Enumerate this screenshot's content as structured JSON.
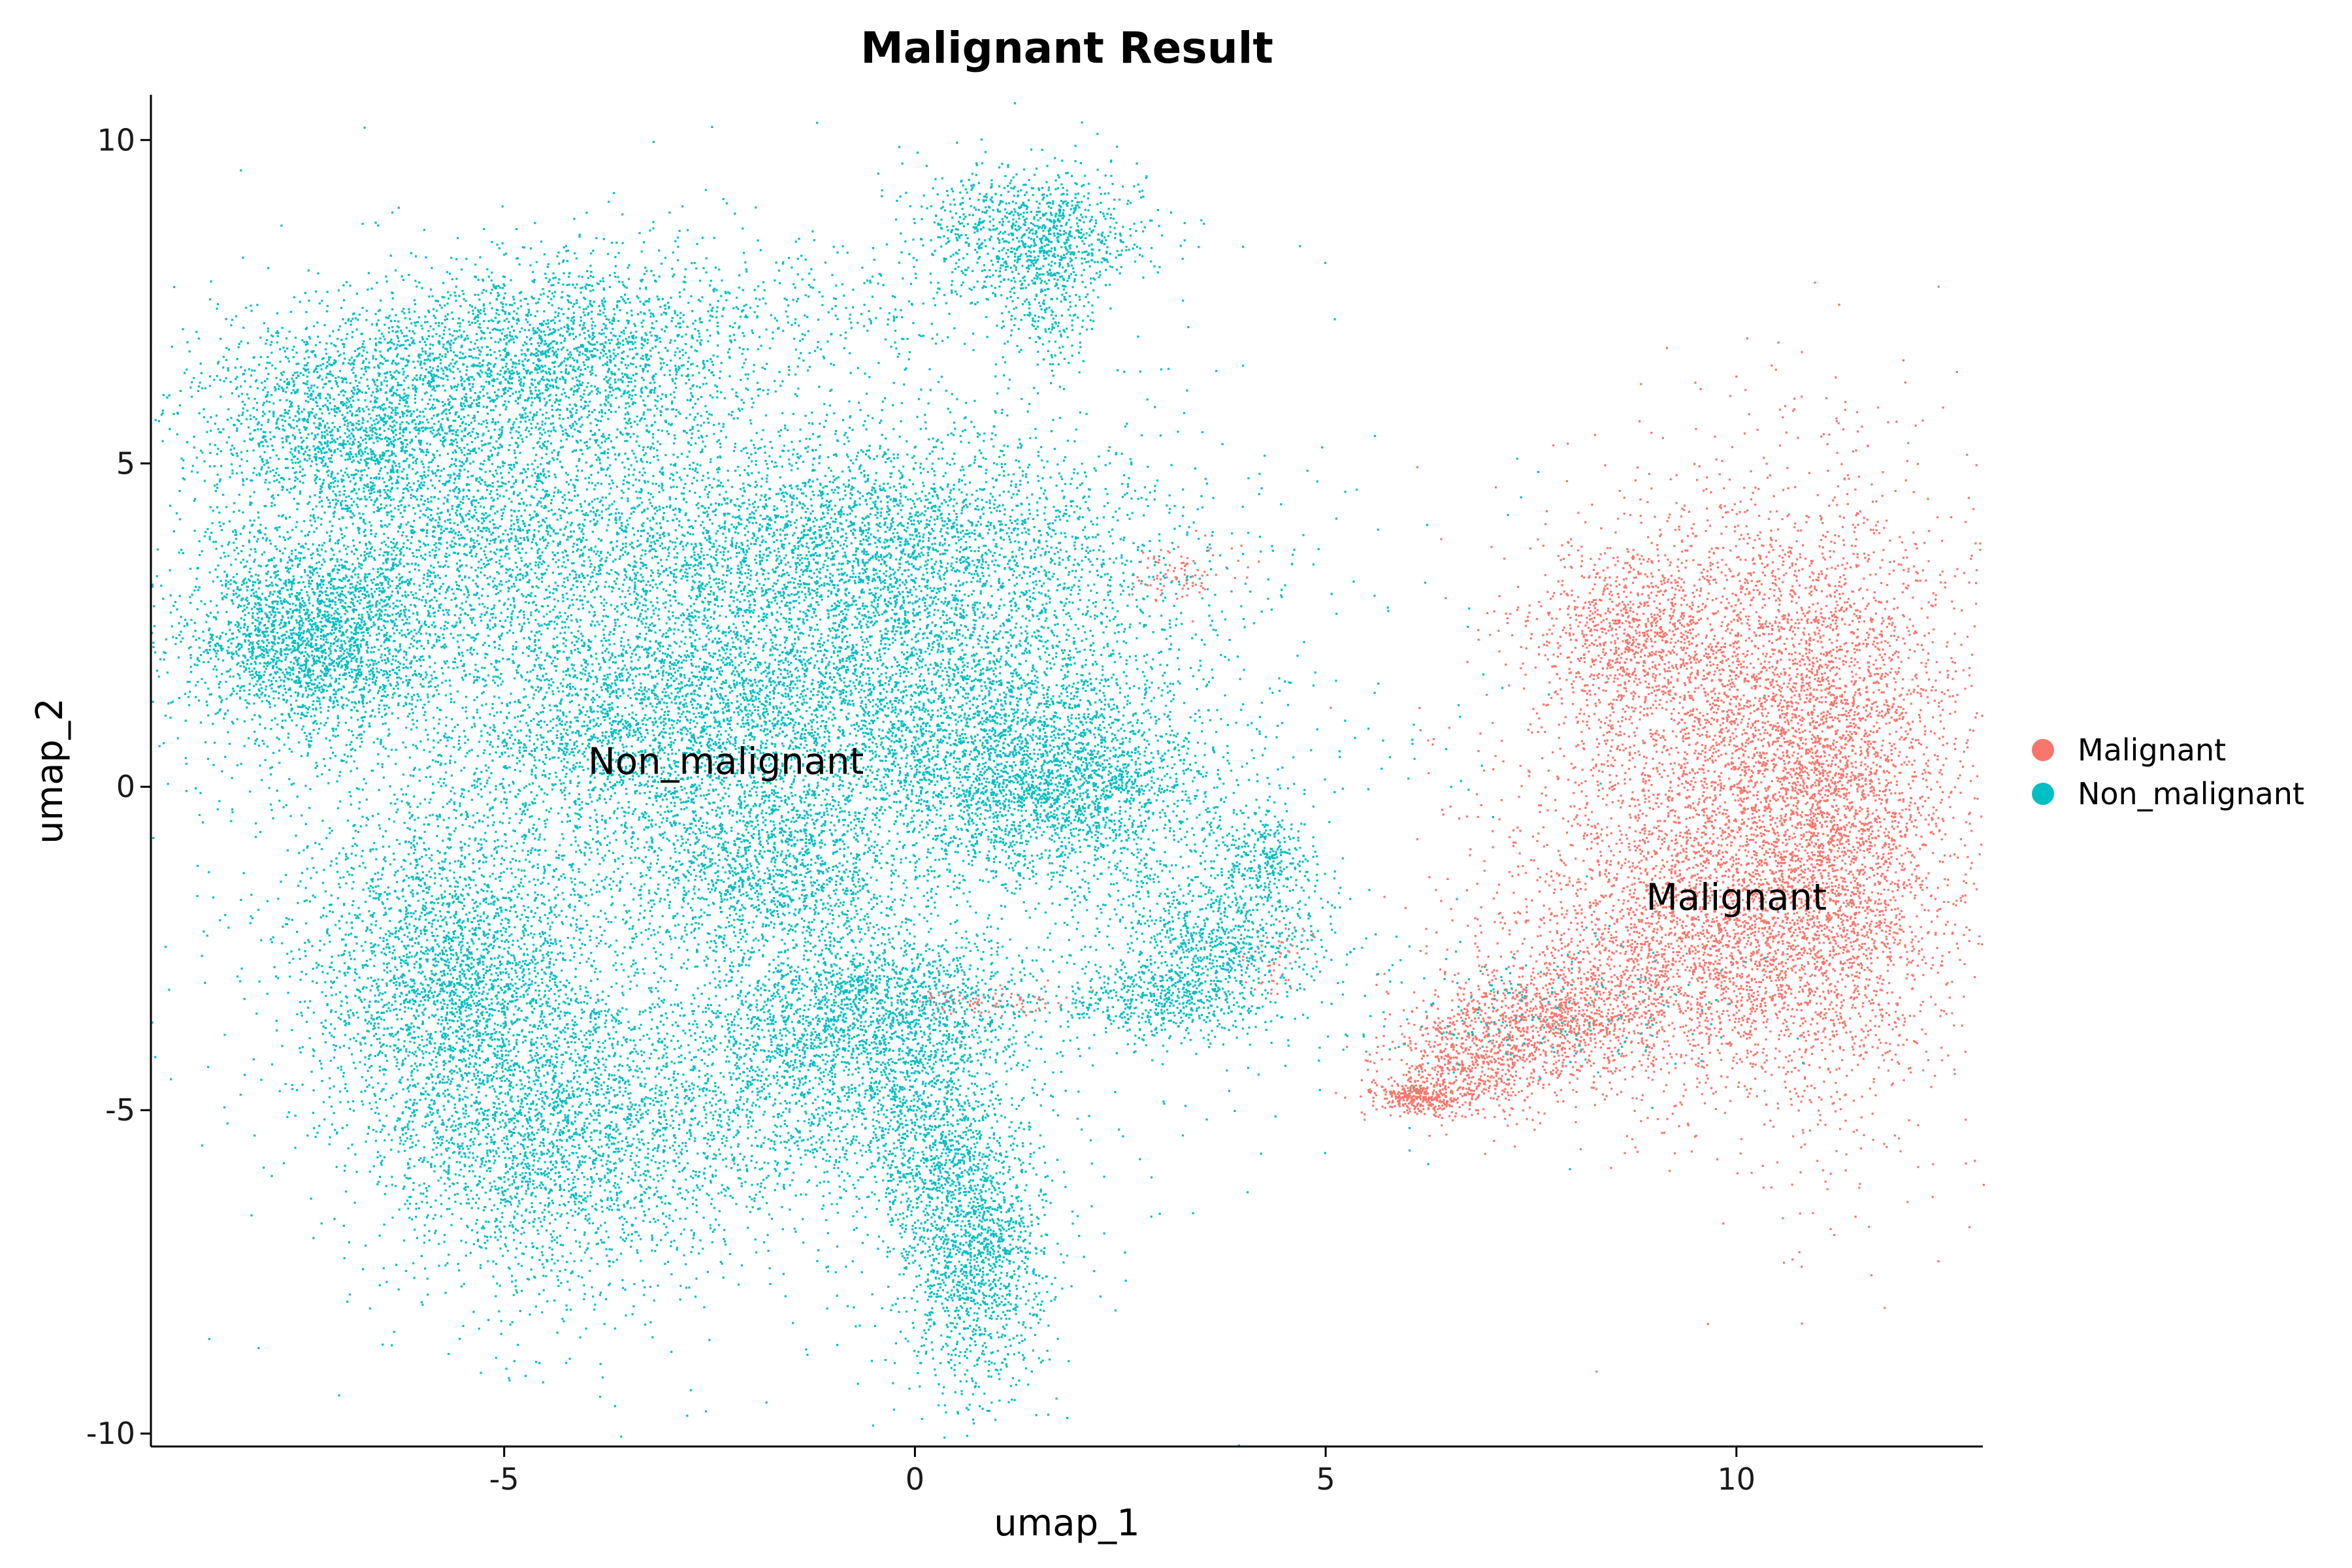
{
  "chart_data": {
    "type": "scatter",
    "title": "Malignant Result",
    "xlabel": "umap_1",
    "ylabel": "umap_2",
    "xlim": [
      -9.3,
      13.0
    ],
    "ylim": [
      -10.2,
      10.7
    ],
    "x_ticks": [
      -5,
      0,
      5,
      10
    ],
    "y_ticks": [
      -10,
      -5,
      0,
      5,
      10
    ],
    "x_tick_labels": [
      "-5",
      "0",
      "5",
      "10"
    ],
    "y_tick_labels": [
      "-10",
      "-5",
      "0",
      "5",
      "10"
    ],
    "grid": false,
    "legend_position": "right",
    "series": [
      {
        "name": "Malignant",
        "color": "#F8766D",
        "clusters": [
          {
            "cx": 10.3,
            "cy": 0.2,
            "sx": 1.3,
            "sy": 2.2,
            "n": 5000
          },
          {
            "cx": 11.2,
            "cy": -0.5,
            "sx": 0.6,
            "sy": 2.2,
            "n": 1800
          },
          {
            "cx": 8.8,
            "cy": 2.4,
            "sx": 0.6,
            "sy": 0.6,
            "n": 800
          },
          {
            "cx": 9.5,
            "cy": -2.6,
            "sx": 1.2,
            "sy": 0.9,
            "n": 1800
          },
          {
            "cx": 7.8,
            "cy": -3.6,
            "sx": 0.7,
            "sy": 0.5,
            "n": 900
          },
          {
            "cx": 6.7,
            "cy": -4.3,
            "sx": 0.5,
            "sy": 0.4,
            "n": 600
          },
          {
            "cx": 6.1,
            "cy": -4.8,
            "sx": 0.25,
            "sy": 0.12,
            "n": 300
          },
          {
            "cx": 3.2,
            "cy": 3.3,
            "sx": 0.35,
            "sy": 0.25,
            "n": 90
          },
          {
            "cx": 0.8,
            "cy": -3.3,
            "sx": 0.5,
            "sy": 0.12,
            "n": 100
          },
          {
            "cx": 4.4,
            "cy": -2.6,
            "sx": 0.2,
            "sy": 0.3,
            "n": 50
          }
        ],
        "label": {
          "text": "Malignant",
          "x": 10.0,
          "y": -1.7
        }
      },
      {
        "name": "Non_malignant",
        "color": "#00BFC4",
        "clusters": [
          {
            "cx": -7.3,
            "cy": 2.3,
            "sx": 0.8,
            "sy": 0.8,
            "n": 2600
          },
          {
            "cx": -6.9,
            "cy": 5.6,
            "sx": 1.0,
            "sy": 0.8,
            "n": 1800
          },
          {
            "cx": -4.5,
            "cy": 6.6,
            "sx": 1.3,
            "sy": 0.8,
            "n": 2400
          },
          {
            "cx": -5.2,
            "cy": 4.0,
            "sx": 1.2,
            "sy": 0.9,
            "n": 1600
          },
          {
            "cx": -3.2,
            "cy": 1.2,
            "sx": 1.4,
            "sy": 1.2,
            "n": 3000
          },
          {
            "cx": -0.5,
            "cy": 3.7,
            "sx": 1.8,
            "sy": 0.9,
            "n": 3200
          },
          {
            "cx": 0.3,
            "cy": 1.3,
            "sx": 1.5,
            "sy": 1.0,
            "n": 2500
          },
          {
            "cx": 1.7,
            "cy": 0.0,
            "sx": 1.0,
            "sy": 0.7,
            "n": 2000
          },
          {
            "cx": -1.7,
            "cy": -1.3,
            "sx": 0.8,
            "sy": 0.6,
            "n": 1000
          },
          {
            "cx": -5.6,
            "cy": -3.0,
            "sx": 0.9,
            "sy": 1.3,
            "n": 2800
          },
          {
            "cx": -4.4,
            "cy": -5.6,
            "sx": 1.1,
            "sy": 1.2,
            "n": 2200
          },
          {
            "cx": -1.6,
            "cy": -4.6,
            "sx": 1.2,
            "sy": 1.0,
            "n": 1400
          },
          {
            "cx": -0.5,
            "cy": -3.4,
            "sx": 0.9,
            "sy": 0.6,
            "n": 1400
          },
          {
            "cx": 0.7,
            "cy": -7.3,
            "sx": 0.45,
            "sy": 1.0,
            "n": 1400
          },
          {
            "cx": 0.2,
            "cy": -5.4,
            "sx": 0.5,
            "sy": 0.8,
            "n": 800
          },
          {
            "cx": 3.6,
            "cy": -2.4,
            "sx": 0.7,
            "sy": 0.6,
            "n": 900
          },
          {
            "cx": 4.2,
            "cy": -1.1,
            "sx": 0.35,
            "sy": 0.4,
            "n": 300
          },
          {
            "cx": 2.9,
            "cy": -3.3,
            "sx": 0.6,
            "sy": 0.3,
            "n": 400
          },
          {
            "cx": 1.4,
            "cy": 8.6,
            "sx": 0.7,
            "sy": 0.5,
            "n": 900
          },
          {
            "cx": 1.6,
            "cy": 7.7,
            "sx": 0.3,
            "sy": 0.6,
            "n": 300
          },
          {
            "cx": -1.0,
            "cy": 7.5,
            "sx": 1.5,
            "sy": 0.5,
            "n": 250
          },
          {
            "cx": 7.5,
            "cy": -3.5,
            "sx": 1.2,
            "sy": 0.5,
            "n": 200
          },
          {
            "cx": -2.0,
            "cy": 0.0,
            "sx": 3.2,
            "sy": 3.5,
            "n": 4000
          }
        ],
        "label": {
          "text": "Non_malignant",
          "x": -2.3,
          "y": 0.4
        }
      }
    ]
  }
}
